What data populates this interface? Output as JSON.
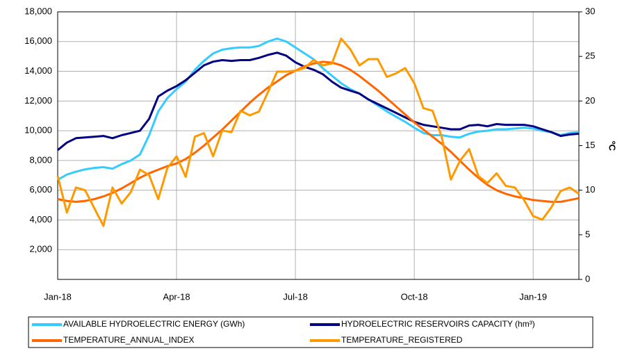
{
  "chart_data": {
    "type": "line",
    "y2label": "ºC",
    "categories": [
      "Jan-18",
      null,
      null,
      null,
      null,
      null,
      null,
      null,
      null,
      null,
      null,
      null,
      null,
      "Apr-18",
      null,
      null,
      null,
      null,
      null,
      null,
      null,
      null,
      null,
      null,
      null,
      null,
      "Jul-18",
      null,
      null,
      null,
      null,
      null,
      null,
      null,
      null,
      null,
      null,
      null,
      null,
      "Oct-18",
      null,
      null,
      null,
      null,
      null,
      null,
      null,
      null,
      null,
      null,
      null,
      null,
      "Jan-19",
      null,
      null,
      null,
      null,
      null
    ],
    "series": [
      {
        "name": "AVAILABLE HYDROELECTRIC ENERGY (GWh)",
        "color": "#33ccff",
        "axis": "y",
        "values": [
          6700,
          7050,
          7250,
          7400,
          7500,
          7550,
          7450,
          7750,
          8000,
          8400,
          9700,
          11300,
          12200,
          12800,
          13300,
          14100,
          14700,
          15200,
          15450,
          15550,
          15600,
          15600,
          15700,
          16000,
          16200,
          16000,
          15600,
          15200,
          14800,
          14200,
          13700,
          13200,
          12800,
          12500,
          12100,
          11700,
          11300,
          10950,
          10600,
          10200,
          9850,
          9700,
          9700,
          9600,
          9550,
          9800,
          9950,
          10000,
          10100,
          10100,
          10150,
          10200,
          10150,
          10000,
          9900,
          9700,
          9850,
          9900
        ]
      },
      {
        "name": "HYDROELECTRIC RESERVOIRS CAPACITY (hm³)",
        "color": "#000080",
        "axis": "y",
        "values": [
          8700,
          9200,
          9500,
          9550,
          9600,
          9650,
          9500,
          9700,
          9850,
          10000,
          10800,
          12300,
          12700,
          13000,
          13400,
          13900,
          14400,
          14650,
          14750,
          14700,
          14750,
          14750,
          14900,
          15100,
          15250,
          15050,
          14600,
          14300,
          14100,
          13800,
          13300,
          12900,
          12700,
          12500,
          12100,
          11800,
          11500,
          11200,
          10900,
          10600,
          10400,
          10300,
          10200,
          10100,
          10100,
          10350,
          10400,
          10300,
          10450,
          10400,
          10400,
          10400,
          10300,
          10100,
          9900,
          9650,
          9750,
          9800
        ]
      },
      {
        "name": "TEMPERATURE_ANNUAL_INDEX",
        "color": "#ff6600",
        "axis": "y2",
        "values": [
          9.0,
          8.8,
          8.7,
          8.8,
          9.0,
          9.3,
          9.7,
          10.2,
          10.8,
          11.4,
          11.9,
          12.3,
          12.7,
          13.0,
          13.5,
          14.2,
          15.0,
          15.9,
          16.8,
          17.8,
          18.8,
          19.8,
          20.7,
          21.5,
          22.2,
          22.9,
          23.4,
          23.9,
          24.2,
          24.4,
          24.3,
          24.0,
          23.5,
          22.8,
          22.0,
          21.2,
          20.3,
          19.4,
          18.5,
          17.6,
          16.8,
          16.0,
          15.2,
          14.3,
          13.3,
          12.3,
          11.4,
          10.6,
          10.0,
          9.6,
          9.3,
          9.1,
          8.9,
          8.8,
          8.7,
          8.7,
          8.9,
          9.1
        ]
      },
      {
        "name": "TEMPERATURE_REGISTERED",
        "color": "#ff9900",
        "axis": "y2",
        "values": [
          11.6,
          7.5,
          10.3,
          10.0,
          8.0,
          6.0,
          10.3,
          8.5,
          9.8,
          12.3,
          11.7,
          9.0,
          12.5,
          13.8,
          11.5,
          16.0,
          16.4,
          13.8,
          16.7,
          16.5,
          18.9,
          18.4,
          18.8,
          21.0,
          23.3,
          23.3,
          23.4,
          23.7,
          24.6,
          24.0,
          24.2,
          27.0,
          25.8,
          24.0,
          24.7,
          24.7,
          22.7,
          23.1,
          23.7,
          22.0,
          19.2,
          18.9,
          16.0,
          11.2,
          13.3,
          14.6,
          11.6,
          10.8,
          11.9,
          10.5,
          10.3,
          8.9,
          7.1,
          6.7,
          8.1,
          9.9,
          10.3,
          9.6
        ]
      }
    ],
    "ylim": [
      0,
      18000
    ],
    "yticks": [
      {
        "value": 2000,
        "label": "2,000"
      },
      {
        "value": 4000,
        "label": "4,000"
      },
      {
        "value": 6000,
        "label": "6,000"
      },
      {
        "value": 8000,
        "label": "8,000"
      },
      {
        "value": 10000,
        "label": "10,000"
      },
      {
        "value": 12000,
        "label": "12,000"
      },
      {
        "value": 14000,
        "label": "14,000"
      },
      {
        "value": 16000,
        "label": "16,000"
      },
      {
        "value": 18000,
        "label": "18,000"
      }
    ],
    "y2lim": [
      0,
      30
    ],
    "y2ticks": [
      0,
      5,
      10,
      15,
      20,
      25,
      30
    ],
    "grid": true
  }
}
